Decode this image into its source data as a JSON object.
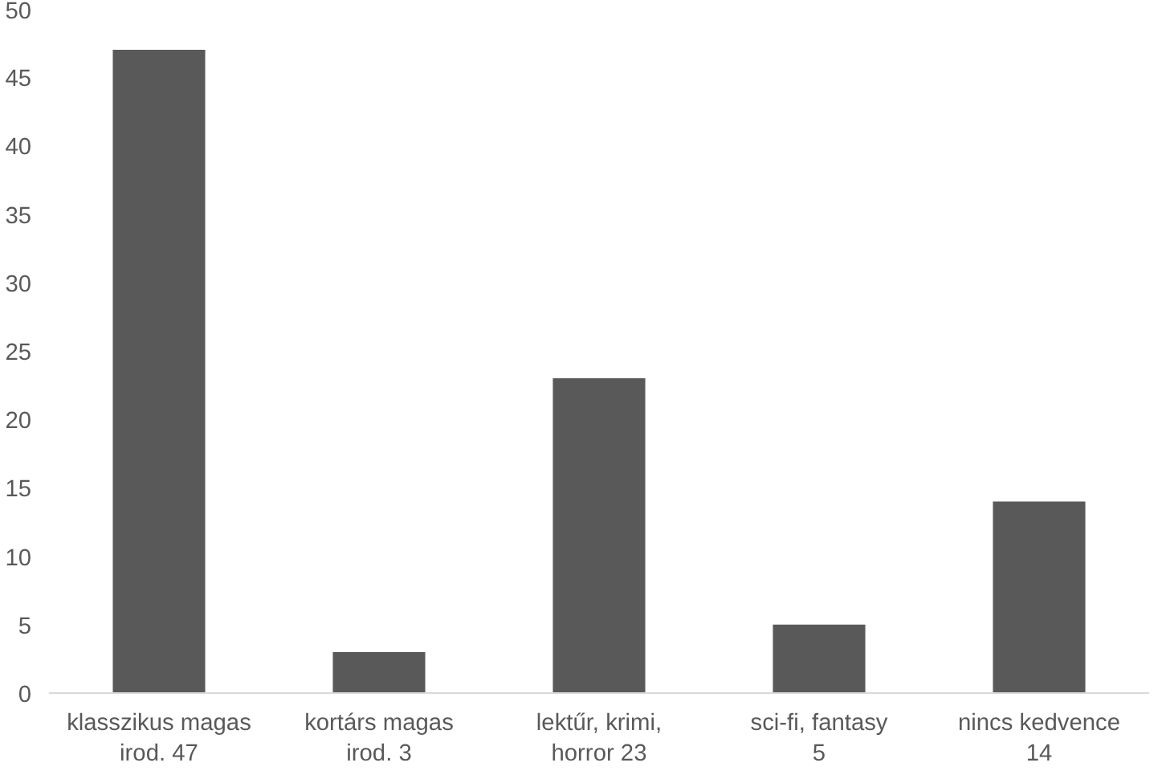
{
  "chart_data": {
    "type": "bar",
    "categories": [
      "klasszikus magas irod. 47",
      "kortárs magas irod. 3",
      "lektűr, krimi, horror 23",
      "sci-fi, fantasy 5",
      "nincs kedvence 14"
    ],
    "values": [
      47,
      3,
      23,
      5,
      14
    ],
    "color": "#595959",
    "ylim": [
      0,
      50
    ],
    "yticks": [
      0,
      5,
      10,
      15,
      20,
      25,
      30,
      35,
      40,
      45,
      50
    ],
    "grid": false
  }
}
